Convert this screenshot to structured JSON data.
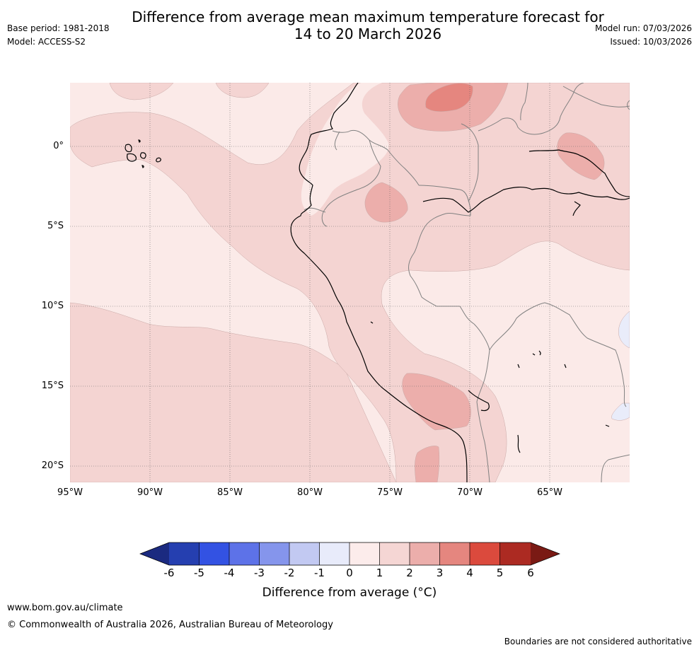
{
  "header": {
    "title_line1": "Difference from average mean maximum temperature forecast for",
    "title_line2": "14 to 20 March 2026",
    "base_period": "Base period: 1981-2018",
    "model": "Model: ACCESS-S2",
    "model_run": "Model run: 07/03/2026",
    "issued": "Issued: 10/03/2026"
  },
  "map": {
    "lat_labels": [
      "0°",
      "5°S",
      "10°S",
      "15°S",
      "20°S"
    ],
    "lon_labels": [
      "95°W",
      "90°W",
      "85°W",
      "80°W",
      "75°W",
      "70°W",
      "65°W"
    ],
    "colors": {
      "c0_1": "#fbeae8",
      "c1_2": "#f4d4d2",
      "c2_3": "#ecaeab",
      "c3_4": "#e5867f",
      "cn0_1": "#e9ecfa",
      "coast": "#000000",
      "border": "#808080"
    }
  },
  "colorbar": {
    "colors": [
      "#1b2a80",
      "#253fb0",
      "#3352e3",
      "#5d72e8",
      "#8595ec",
      "#c2c9f2",
      "#e8ebfa",
      "#fceceb",
      "#f5d6d4",
      "#ecaeab",
      "#e5867f",
      "#db4a3d",
      "#ac2a22",
      "#7a1a14"
    ],
    "ticks": [
      "-6",
      "-5",
      "-4",
      "-3",
      "-2",
      "-1",
      "0",
      "1",
      "2",
      "3",
      "4",
      "5",
      "6"
    ],
    "label": "Difference from average (°C)"
  },
  "footer": {
    "website": "www.bom.gov.au/climate",
    "copyright": "© Commonwealth of Australia 2026, Australian Bureau of Meteorology",
    "disclaimer": "Boundaries are not considered authoritative"
  }
}
